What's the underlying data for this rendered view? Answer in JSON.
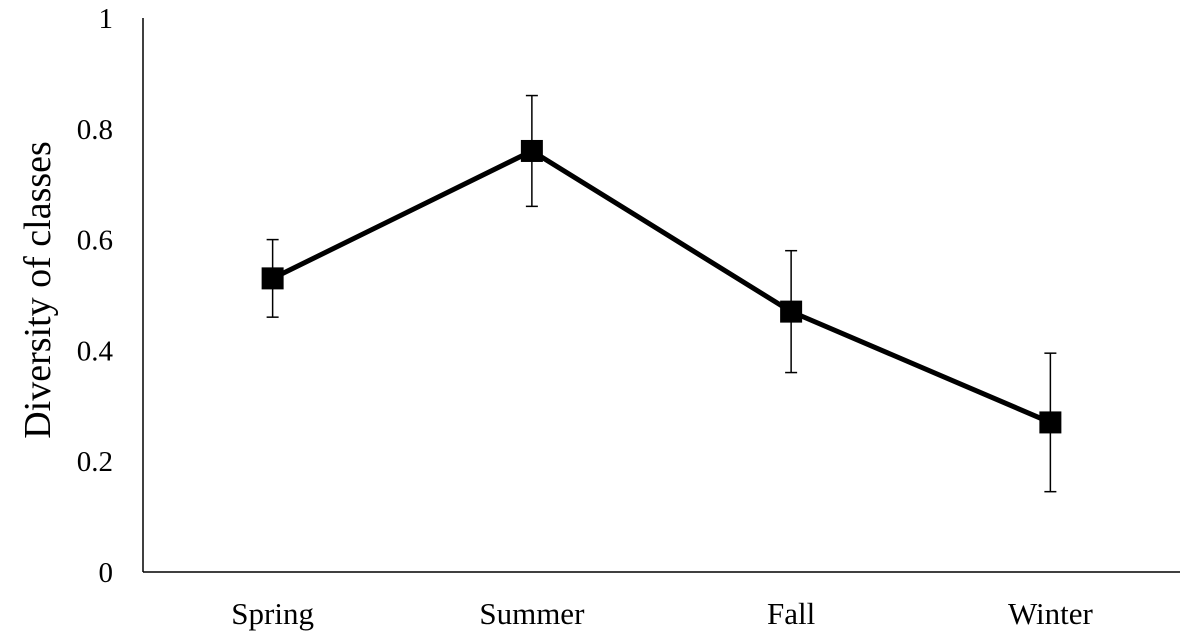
{
  "chart_data": {
    "type": "line",
    "title": "",
    "xlabel": "",
    "ylabel": "Diversity of classes",
    "categories": [
      "Spring",
      "Summer",
      "Fall",
      "Winter"
    ],
    "ylim": [
      0,
      1
    ],
    "yticks": [
      "0",
      "0.2",
      "0.4",
      "0.6",
      "0.8",
      "1"
    ],
    "ytick_values": [
      0,
      0.2,
      0.4,
      0.6,
      0.8,
      1
    ],
    "grid": false,
    "legend": "none",
    "series": [
      {
        "values": [
          0.53,
          0.76,
          0.47,
          0.27
        ],
        "error_low": [
          0.46,
          0.66,
          0.36,
          0.145
        ],
        "error_high": [
          0.6,
          0.86,
          0.58,
          0.395
        ],
        "marker": "square",
        "color": "#000000"
      }
    ]
  }
}
